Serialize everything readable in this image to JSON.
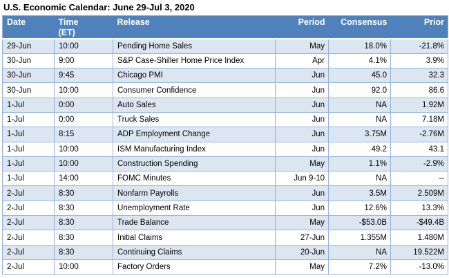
{
  "title": "U.S. Economic Calendar: June 29-Jul 3, 2020",
  "colors": {
    "header_bg": "#4F81BD",
    "header_text": "#FFFFFF",
    "row_alt_bg": "#DCE6F1",
    "row_bg": "#FFFFFF",
    "border": "#95B3D7",
    "text": "#000000"
  },
  "chart_data": {
    "type": "table",
    "title": "U.S. Economic Calendar: June 29-Jul 3, 2020",
    "columns": [
      {
        "key": "date",
        "label": "Date",
        "align": "left"
      },
      {
        "key": "time",
        "label": "Time (ET)",
        "align": "left"
      },
      {
        "key": "release",
        "label": "Release",
        "align": "left"
      },
      {
        "key": "period",
        "label": "Period",
        "align": "right"
      },
      {
        "key": "consensus",
        "label": "Consensus",
        "align": "right"
      },
      {
        "key": "prior",
        "label": "Prior",
        "align": "right"
      }
    ],
    "rows": [
      {
        "date": "29-Jun",
        "time": "10:00",
        "release": "Pending Home Sales",
        "period": "May",
        "consensus": "18.0%",
        "prior": "-21.8%"
      },
      {
        "date": "30-Jun",
        "time": "9:00",
        "release": "S&P Case-Shiller Home Price Index",
        "period": "Apr",
        "consensus": "4.1%",
        "prior": "3.9%"
      },
      {
        "date": "30-Jun",
        "time": "9:45",
        "release": "Chicago PMI",
        "period": "Jun",
        "consensus": "45.0",
        "prior": "32.3"
      },
      {
        "date": "30-Jun",
        "time": "10:00",
        "release": "Consumer Confidence",
        "period": "Jun",
        "consensus": "92.0",
        "prior": "86.6"
      },
      {
        "date": "1-Jul",
        "time": "0:00",
        "release": "Auto Sales",
        "period": "Jun",
        "consensus": "NA",
        "prior": "1.92M"
      },
      {
        "date": "1-Jul",
        "time": "0:00",
        "release": "Truck Sales",
        "period": "Jun",
        "consensus": "NA",
        "prior": "7.18M"
      },
      {
        "date": "1-Jul",
        "time": "8:15",
        "release": "ADP Employment Change",
        "period": "Jun",
        "consensus": "3.75M",
        "prior": "-2.76M"
      },
      {
        "date": "1-Jul",
        "time": "10:00",
        "release": "ISM Manufacturing Index",
        "period": "Jun",
        "consensus": "49.2",
        "prior": "43.1"
      },
      {
        "date": "1-Jul",
        "time": "10:00",
        "release": "Construction Spending",
        "period": "May",
        "consensus": "1.1%",
        "prior": "-2.9%"
      },
      {
        "date": "1-Jul",
        "time": "14:00",
        "release": "FOMC Minutes",
        "period": "Jun 9-10",
        "consensus": "NA",
        "prior": "--"
      },
      {
        "date": "2-Jul",
        "time": "8:30",
        "release": "Nonfarm Payrolls",
        "period": "Jun",
        "consensus": "3.5M",
        "prior": "2.509M"
      },
      {
        "date": "2-Jul",
        "time": "8:30",
        "release": "Unemployment Rate",
        "period": "Jun",
        "consensus": "12.6%",
        "prior": "13.3%"
      },
      {
        "date": "2-Jul",
        "time": "8:30",
        "release": "Trade Balance",
        "period": "May",
        "consensus": "-$53.0B",
        "prior": "-$49.4B"
      },
      {
        "date": "2-Jul",
        "time": "8:30",
        "release": "Initial Claims",
        "period": "27-Jun",
        "consensus": "1.355M",
        "prior": "1.480M"
      },
      {
        "date": "2-Jul",
        "time": "8:30",
        "release": "Continuing Claims",
        "period": "20-Jun",
        "consensus": "NA",
        "prior": "19.522M"
      },
      {
        "date": "2-Jul",
        "time": "10:00",
        "release": "Factory Orders",
        "period": "May",
        "consensus": "7.2%",
        "prior": "-13.0%"
      }
    ]
  }
}
